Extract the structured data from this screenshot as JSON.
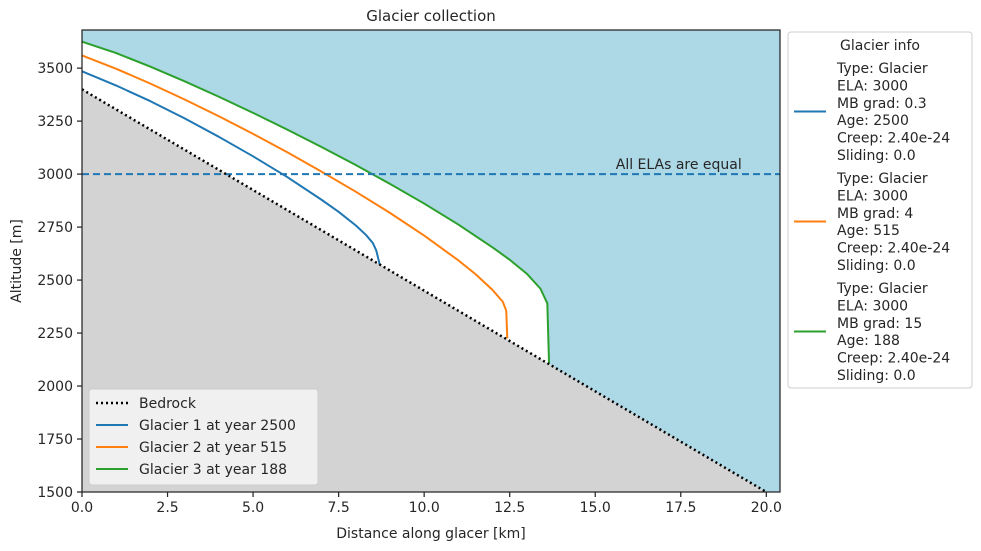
{
  "chart_data": {
    "type": "line",
    "title": "Glacier collection",
    "xlabel": "Distance along glacer [km]",
    "ylabel": "Altitude [m]",
    "xlim": [
      0,
      20.4
    ],
    "ylim": [
      1500,
      3680
    ],
    "x_ticks": [
      0.0,
      2.5,
      5.0,
      7.5,
      10.0,
      12.5,
      15.0,
      17.5,
      20.0
    ],
    "x_tick_labels": [
      "0.0",
      "2.5",
      "5.0",
      "7.5",
      "10.0",
      "12.5",
      "15.0",
      "17.5",
      "20.0"
    ],
    "y_ticks": [
      1500,
      1750,
      2000,
      2250,
      2500,
      2750,
      3000,
      3250,
      3500
    ],
    "y_tick_labels": [
      "1500",
      "1750",
      "2000",
      "2250",
      "2500",
      "2750",
      "3000",
      "3250",
      "3500"
    ],
    "grid": false,
    "colors": {
      "sky": "#add8e6",
      "bedrock_fill": "#d3d3d3",
      "ice": "#ffffff",
      "bedrock_line": "#000000",
      "ela_line": "#1f77b4"
    },
    "bedrock": {
      "name": "Bedrock",
      "x": [
        0,
        20
      ],
      "y": [
        3400,
        1500
      ]
    },
    "ela": {
      "value": 3000,
      "annotation": "All ELAs are equal",
      "annotation_x": 15.6
    },
    "series": [
      {
        "name": "Glacier 1 at year 2500",
        "color": "#1f77b4",
        "x": [
          0,
          1,
          2,
          3,
          4,
          5,
          6,
          7,
          7.5,
          8.0,
          8.3,
          8.5,
          8.6,
          8.7
        ],
        "y": [
          3485,
          3418,
          3344,
          3263,
          3176,
          3084,
          2986,
          2879,
          2822,
          2758,
          2713,
          2675,
          2640,
          2574
        ]
      },
      {
        "name": "Glacier 2 at year 515",
        "color": "#ff7f0e",
        "x": [
          0,
          1,
          2,
          3,
          4,
          5,
          6,
          7,
          8,
          9,
          10,
          11,
          11.5,
          12.0,
          12.3,
          12.4,
          12.43
        ],
        "y": [
          3560,
          3497,
          3427,
          3352,
          3273,
          3190,
          3103,
          3012,
          2917,
          2817,
          2710,
          2593,
          2528,
          2453,
          2397,
          2355,
          2225
        ]
      },
      {
        "name": "Glacier 3 at year 188",
        "color": "#2ca02c",
        "x": [
          0,
          1,
          2,
          3,
          4,
          5,
          6,
          7,
          8,
          9,
          10,
          11,
          12,
          12.5,
          13.0,
          13.4,
          13.6,
          13.65
        ],
        "y": [
          3625,
          3571,
          3507,
          3438,
          3365,
          3289,
          3210,
          3128,
          3043,
          2954,
          2861,
          2762,
          2654,
          2596,
          2530,
          2459,
          2390,
          2107
        ]
      }
    ],
    "legend": {
      "placement": "lower-left",
      "entries": [
        "Bedrock",
        "Glacier 1 at year 2500",
        "Glacier 2 at year 515",
        "Glacier 3 at year 188"
      ]
    },
    "info_legend": {
      "title": "Glacier info",
      "placement": "outside-right",
      "entries": [
        {
          "color": "#1f77b4",
          "lines": [
            "Type: Glacier",
            "ELA: 3000",
            "MB grad: 0.3",
            "Age: 2500",
            "Creep: 2.40e-24",
            "Sliding: 0.0"
          ]
        },
        {
          "color": "#ff7f0e",
          "lines": [
            "Type: Glacier",
            "ELA: 3000",
            "MB grad: 4",
            "Age: 515",
            "Creep: 2.40e-24",
            "Sliding: 0.0"
          ]
        },
        {
          "color": "#2ca02c",
          "lines": [
            "Type: Glacier",
            "ELA: 3000",
            "MB grad: 15",
            "Age: 188",
            "Creep: 2.40e-24",
            "Sliding: 0.0"
          ]
        }
      ]
    }
  }
}
